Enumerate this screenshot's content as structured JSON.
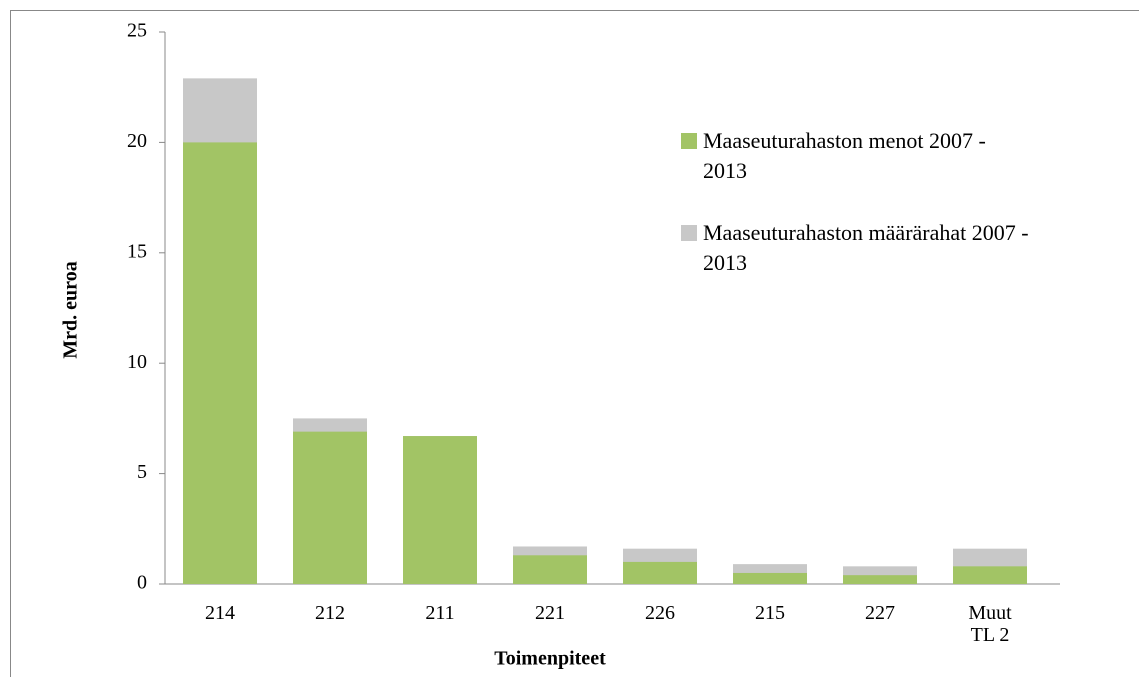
{
  "chart_data": {
    "type": "bar",
    "overlap": true,
    "y_label": "Mrd. euroa",
    "x_label": "Toimenpiteet",
    "categories": [
      "214",
      "212",
      "211",
      "221",
      "226",
      "215",
      "227",
      "Muut TL 2"
    ],
    "series": [
      {
        "name": "Maaseuturahaston määrärahat 2007 - 2013",
        "color": "#c8c8c8",
        "values": [
          22.9,
          7.5,
          6.7,
          1.7,
          1.6,
          0.9,
          0.8,
          1.6
        ]
      },
      {
        "name": "Maaseuturahaston menot 2007 - 2013",
        "color": "#a2c465",
        "values": [
          20.0,
          6.9,
          6.7,
          1.3,
          1.0,
          0.5,
          0.4,
          0.8
        ]
      }
    ],
    "ylim": [
      0,
      25
    ],
    "yticks": [
      0,
      5,
      10,
      15,
      20,
      25
    ]
  }
}
